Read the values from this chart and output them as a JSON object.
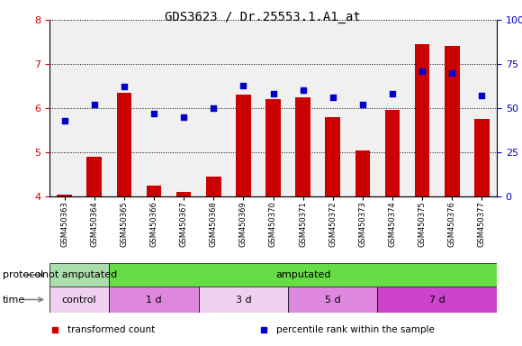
{
  "title": "GDS3623 / Dr.25553.1.A1_at",
  "samples": [
    "GSM450363",
    "GSM450364",
    "GSM450365",
    "GSM450366",
    "GSM450367",
    "GSM450368",
    "GSM450369",
    "GSM450370",
    "GSM450371",
    "GSM450372",
    "GSM450373",
    "GSM450374",
    "GSM450375",
    "GSM450376",
    "GSM450377"
  ],
  "bar_values": [
    4.05,
    4.9,
    6.35,
    4.25,
    4.1,
    4.45,
    6.3,
    6.2,
    6.25,
    5.8,
    5.05,
    5.95,
    7.45,
    7.4,
    5.75
  ],
  "dot_values": [
    43,
    52,
    62,
    47,
    45,
    50,
    63,
    58,
    60,
    56,
    52,
    58,
    71,
    70,
    57
  ],
  "ylim_left": [
    4,
    8
  ],
  "ylim_right": [
    0,
    100
  ],
  "yticks_left": [
    4,
    5,
    6,
    7,
    8
  ],
  "yticks_right": [
    0,
    25,
    50,
    75,
    100
  ],
  "bar_color": "#cc0000",
  "dot_color": "#0000cc",
  "grid_color": "#000000",
  "protocol_not_amputated_color": "#aaddaa",
  "protocol_amputated_color": "#66dd44",
  "time_control_color": "#f0d0f0",
  "time_1d_color": "#dd88dd",
  "time_3d_color": "#f0d0f0",
  "time_5d_color": "#dd88dd",
  "time_7d_color": "#cc44cc",
  "protocol_sections": [
    {
      "text": "not amputated",
      "start": 0,
      "end": 2
    },
    {
      "text": "amputated",
      "start": 2,
      "end": 15
    }
  ],
  "time_sections": [
    {
      "text": "control",
      "start": 0,
      "end": 2
    },
    {
      "text": "1 d",
      "start": 2,
      "end": 5
    },
    {
      "text": "3 d",
      "start": 5,
      "end": 8
    },
    {
      "text": "5 d",
      "start": 8,
      "end": 11
    },
    {
      "text": "7 d",
      "start": 11,
      "end": 15
    }
  ],
  "legend_items": [
    {
      "label": "transformed count",
      "color": "#cc0000"
    },
    {
      "label": "percentile rank within the sample",
      "color": "#0000cc"
    }
  ],
  "axis_left_color": "#cc0000",
  "axis_right_color": "#0000cc",
  "plot_bg": "#f0f0f0",
  "white": "#ffffff"
}
